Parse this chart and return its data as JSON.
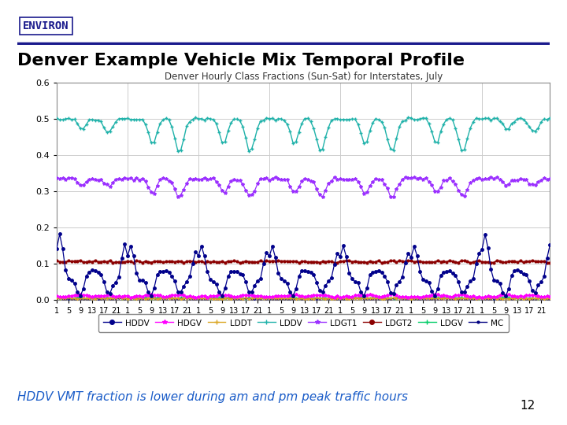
{
  "title": "Denver Example Vehicle Mix Temporal Profile",
  "chart_title": "Denver Hourly Class Fractions (Sun-Sat) for Interstates, July",
  "subtitle": "HDDV VMT fraction is lower during am and pm peak traffic hours",
  "page_number": "12",
  "environ_text": "ENVIRON",
  "n_days": 7,
  "hours_per_day": 24,
  "ylim": [
    0,
    0.6
  ],
  "yticks": [
    0.0,
    0.1,
    0.2,
    0.3,
    0.4,
    0.5,
    0.6
  ],
  "xtick_hours": [
    1,
    5,
    9,
    13,
    17,
    21
  ],
  "header_color": "#1a1a8c",
  "subtitle_color": "#1a5cc8",
  "bg_color": "#ffffff",
  "grid_color": "#cccccc",
  "series_order": [
    "HDDV",
    "HDGV",
    "LDDT",
    "LDDV",
    "LDGT1",
    "LDGT2",
    "LDGV",
    "MC"
  ],
  "series_colors": {
    "HDDV": "#00008B",
    "HDGV": "#FF00FF",
    "LDDT": "#DAA520",
    "LDDV": "#20B2AA",
    "LDGT1": "#9B30FF",
    "LDGT2": "#8B0000",
    "LDGV": "#00CC66",
    "MC": "#000080"
  },
  "series_markers": {
    "HDDV": "o",
    "HDGV": "*",
    "LDDT": "+",
    "LDDV": "+",
    "LDGT1": "*",
    "LDGT2": "o",
    "LDGV": "+",
    "MC": "."
  }
}
